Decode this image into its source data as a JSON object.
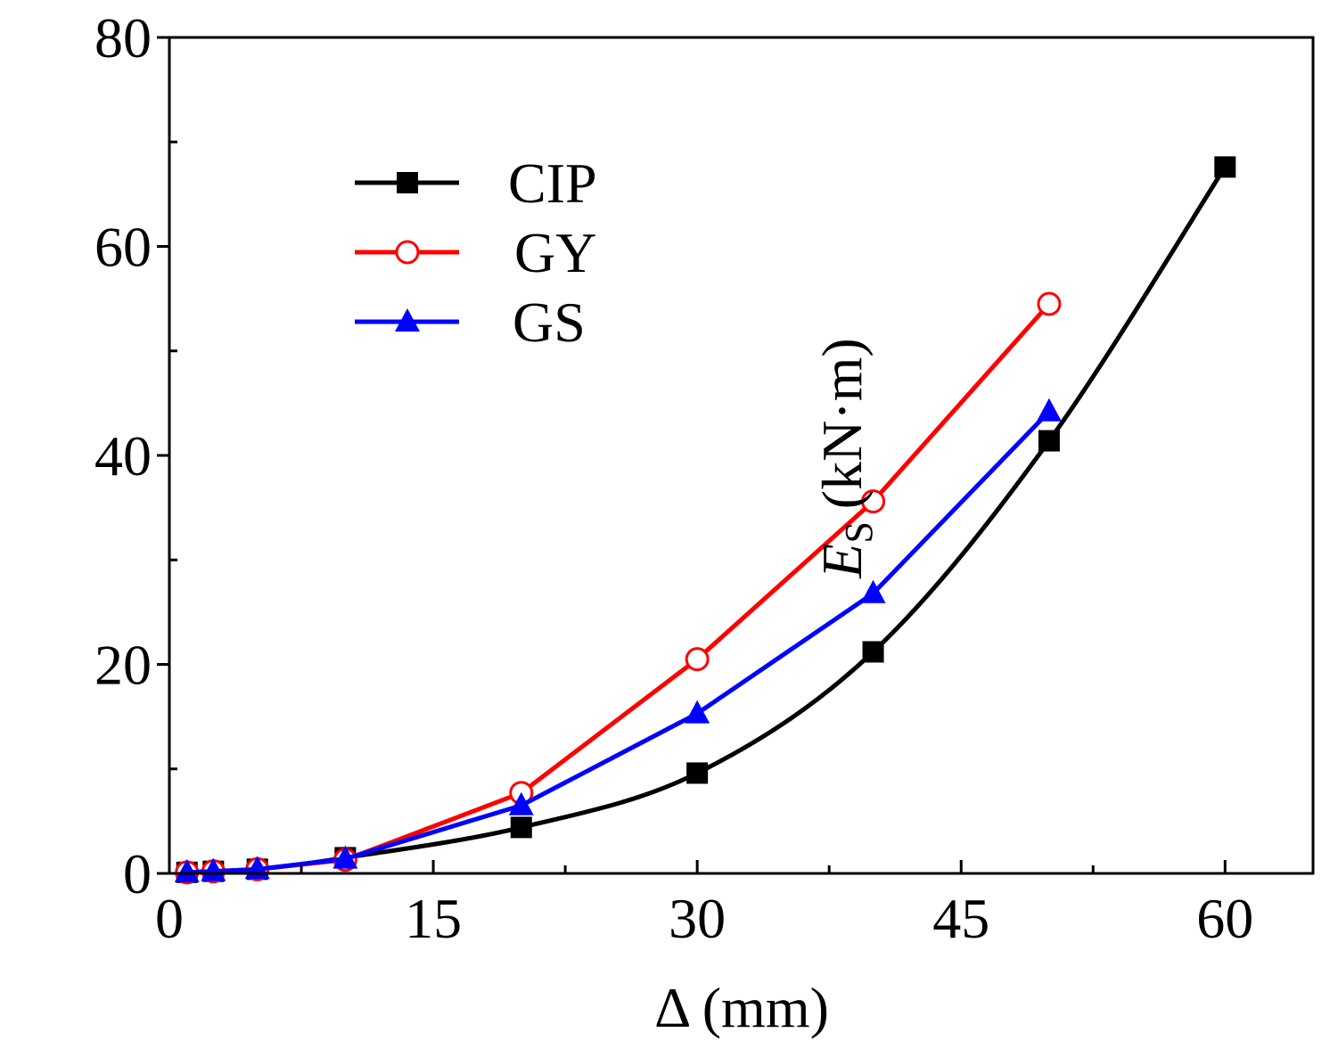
{
  "chart_data": {
    "type": "line",
    "title": "",
    "xlabel": "Δ (mm)",
    "ylabel": {
      "symbol": "E",
      "subscript": "S",
      "unit": "(kN·m)"
    },
    "xlim": [
      0,
      65
    ],
    "ylim": [
      0,
      80
    ],
    "xticks": [
      0,
      15,
      30,
      45,
      60
    ],
    "yticks": [
      0,
      20,
      40,
      60,
      80
    ],
    "x_minor_ticks": [
      7.5,
      22.5,
      37.5,
      52.5
    ],
    "y_minor_ticks": [
      10,
      30,
      50,
      70
    ],
    "grid": false,
    "legend_position": "top-left",
    "series": [
      {
        "name": "CIP",
        "color": "#000000",
        "marker": "filled-square",
        "smooth": true,
        "x": [
          1,
          2.5,
          5,
          10,
          20,
          30,
          40,
          50,
          60
        ],
        "y": [
          0.1,
          0.2,
          0.4,
          1.5,
          4.4,
          9.6,
          21.2,
          41.4,
          67.6
        ]
      },
      {
        "name": "GY",
        "color": "#ff0000",
        "marker": "open-circle",
        "smooth": false,
        "x": [
          1,
          2.5,
          5,
          10,
          20,
          30,
          40,
          50
        ],
        "y": [
          0.1,
          0.2,
          0.4,
          1.3,
          7.7,
          20.5,
          35.6,
          54.5
        ]
      },
      {
        "name": "GS",
        "color": "#0000ff",
        "marker": "filled-triangle",
        "smooth": false,
        "x": [
          1,
          2.5,
          5,
          10,
          20,
          30,
          40,
          50
        ],
        "y": [
          0.1,
          0.2,
          0.4,
          1.4,
          6.5,
          15.3,
          26.8,
          44.2
        ]
      }
    ]
  }
}
